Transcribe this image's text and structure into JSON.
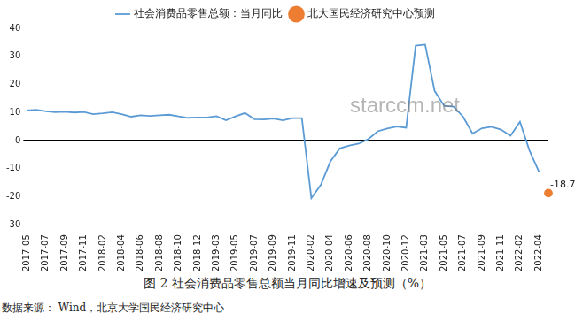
{
  "chart_data": {
    "type": "line",
    "caption": "图 2 社会消费品零售总额当月同比增速及预测（%）",
    "source": "数据来源： Wind，北京大学国民经济研究中心",
    "watermark": "starccm.net",
    "categories": [
      "2017-05",
      null,
      "2017-07",
      null,
      "2017-09",
      null,
      "2017-11",
      null,
      "2018-02",
      null,
      "2018-04",
      null,
      "2018-06",
      null,
      "2018-08",
      null,
      "2018-10",
      null,
      "2018-12",
      null,
      "2019-03",
      null,
      "2019-05",
      null,
      "2019-07",
      null,
      "2019-09",
      null,
      "2019-11",
      null,
      "2020-02",
      null,
      "2020-04",
      null,
      "2020-06",
      null,
      "2020-08",
      null,
      "2020-10",
      null,
      "2020-12",
      null,
      "2021-03",
      null,
      "2021-05",
      null,
      "2021-07",
      null,
      "2021-09",
      null,
      "2021-11",
      null,
      "2022-02",
      null,
      "2022-04",
      null
    ],
    "series": [
      {
        "name": "社会消费品零售总额：当月同比",
        "color": "#5b9bd5",
        "marker": "none",
        "values": [
          10.7,
          11.0,
          10.4,
          10.1,
          10.3,
          10.0,
          10.2,
          9.4,
          9.7,
          10.1,
          9.4,
          8.5,
          9.0,
          8.8,
          9.0,
          9.2,
          8.6,
          8.1,
          8.2,
          8.2,
          8.7,
          7.2,
          8.6,
          9.8,
          7.6,
          7.5,
          7.8,
          7.2,
          8.0,
          8.0,
          -20.5,
          -15.8,
          -7.5,
          -2.8,
          -1.8,
          -1.1,
          0.5,
          3.3,
          4.3,
          5.0,
          4.6,
          33.8,
          34.2,
          17.7,
          12.4,
          12.1,
          8.5,
          2.5,
          4.4,
          4.9,
          3.9,
          1.7,
          6.7,
          -3.5,
          -11.1,
          null
        ]
      },
      {
        "name": "北大国民经济研究中心预测",
        "color": "#ed7d31",
        "marker": "circle",
        "data_labels": true,
        "values": [
          null,
          null,
          null,
          null,
          null,
          null,
          null,
          null,
          null,
          null,
          null,
          null,
          null,
          null,
          null,
          null,
          null,
          null,
          null,
          null,
          null,
          null,
          null,
          null,
          null,
          null,
          null,
          null,
          null,
          null,
          null,
          null,
          null,
          null,
          null,
          null,
          null,
          null,
          null,
          null,
          null,
          null,
          null,
          null,
          null,
          null,
          null,
          null,
          null,
          null,
          null,
          null,
          null,
          null,
          null,
          -18.7
        ]
      }
    ],
    "ylim": [
      -30,
      40
    ],
    "yticks": [
      -30,
      -20,
      -10,
      0,
      10,
      20,
      30,
      40
    ],
    "grid": false,
    "legend": "top"
  }
}
